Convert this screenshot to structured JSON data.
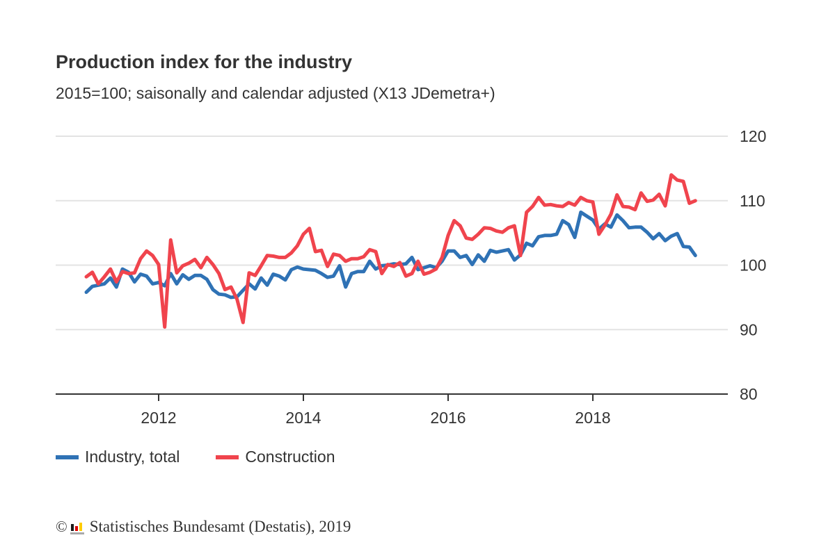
{
  "header": {
    "title": "Production index for the industry",
    "subtitle": "2015=100; saisonally and calendar adjusted (X13 JDemetra+)"
  },
  "footer": {
    "copyright_symbol": "©",
    "text": "Statistisches Bundesamt (Destatis), 2019"
  },
  "chart_data": {
    "type": "line",
    "title": "Production index for the industry",
    "subtitle": "2015=100; saisonally and calendar adjusted (X13 JDemetra+)",
    "xlabel": "",
    "ylabel": "",
    "x_start": "2011-01",
    "x_frequency": "monthly",
    "x_range": [
      2010.75,
      2019.9
    ],
    "ylim": [
      80,
      120
    ],
    "y_ticks": [
      80,
      90,
      100,
      110,
      120
    ],
    "y_tick_labels": [
      "80",
      "90",
      "100",
      "110",
      "120"
    ],
    "x_ticks": [
      2012,
      2014,
      2016,
      2018
    ],
    "x_tick_labels": [
      "2012",
      "2014",
      "2016",
      "2018"
    ],
    "y_axis_side": "right",
    "grid": true,
    "legend_position": "bottom-left",
    "series": [
      {
        "name": "Industry, total",
        "color": "#2f72b5",
        "values": [
          95.8,
          96.7,
          96.9,
          97.1,
          98.0,
          96.6,
          99.4,
          98.9,
          97.4,
          98.6,
          98.3,
          97.1,
          97.3,
          96.8,
          98.7,
          97.1,
          98.5,
          97.8,
          98.4,
          98.4,
          97.8,
          96.2,
          95.5,
          95.4,
          95.0,
          95.1,
          96.1,
          97.1,
          96.3,
          98.0,
          96.9,
          98.6,
          98.3,
          97.7,
          99.3,
          99.7,
          99.4,
          99.3,
          99.2,
          98.7,
          98.1,
          98.3,
          99.9,
          96.6,
          98.7,
          99.0,
          99.0,
          100.6,
          99.4,
          99.9,
          100.0,
          100.2,
          100.1,
          100.2,
          101.2,
          99.3,
          99.6,
          99.9,
          99.6,
          100.6,
          102.2,
          102.2,
          101.2,
          101.5,
          100.1,
          101.6,
          100.6,
          102.3,
          102.0,
          102.2,
          102.4,
          100.8,
          101.6,
          103.4,
          103.0,
          104.4,
          104.6,
          104.6,
          104.8,
          106.9,
          106.3,
          104.3,
          108.2,
          107.6,
          107.0,
          105.6,
          106.4,
          105.9,
          107.8,
          106.9,
          105.8,
          105.9,
          105.9,
          105.1,
          104.1,
          104.9,
          103.8,
          104.5,
          104.9,
          102.9,
          102.8,
          101.5
        ]
      },
      {
        "name": "Construction",
        "color": "#f0444d",
        "values": [
          98.2,
          98.9,
          97.1,
          98.2,
          99.4,
          97.4,
          99.0,
          98.7,
          98.8,
          101.0,
          102.2,
          101.5,
          100.1,
          90.4,
          103.9,
          98.8,
          99.9,
          100.3,
          100.9,
          99.6,
          101.2,
          100.1,
          98.7,
          96.2,
          96.6,
          94.7,
          91.1,
          98.8,
          98.4,
          99.9,
          101.5,
          101.4,
          101.2,
          101.2,
          101.9,
          103.0,
          104.8,
          105.7,
          102.1,
          102.3,
          99.8,
          101.7,
          101.5,
          100.6,
          101.0,
          101.0,
          101.3,
          102.4,
          102.1,
          98.7,
          100.1,
          99.8,
          100.4,
          98.3,
          98.7,
          100.6,
          98.6,
          98.9,
          99.4,
          101.2,
          104.6,
          106.9,
          106.1,
          104.2,
          104.0,
          104.8,
          105.8,
          105.7,
          105.3,
          105.1,
          105.8,
          106.1,
          101.5,
          108.2,
          109.1,
          110.5,
          109.3,
          109.4,
          109.2,
          109.1,
          109.7,
          109.3,
          110.5,
          110.0,
          109.8,
          104.8,
          106.2,
          107.9,
          110.9,
          109.1,
          109.0,
          108.6,
          111.2,
          109.9,
          110.1,
          111.0,
          109.2,
          114.0,
          113.2,
          113.0,
          109.6,
          110.0
        ]
      }
    ]
  }
}
